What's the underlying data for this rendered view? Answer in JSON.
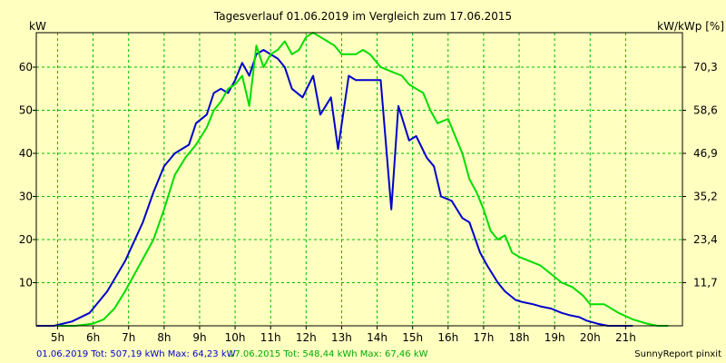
{
  "chart_data": {
    "type": "line",
    "title": "Tagesverlauf 01.06.2019 im Vergleich zum 17.06.2015",
    "ylabel_left": "kW",
    "ylabel_right": "kW/kWp [%]",
    "ylim": [
      0,
      68
    ],
    "xlim": [
      4.4,
      22.6
    ],
    "yticks_left": [
      10,
      20,
      30,
      40,
      50,
      60
    ],
    "yticks_right": [
      "11,7",
      "23,4",
      "35,2",
      "46,9",
      "58,6",
      "70,3"
    ],
    "xticks": [
      "5h",
      "6h",
      "7h",
      "8h",
      "9h",
      "10h",
      "11h",
      "12h",
      "13h",
      "14h",
      "15h",
      "16h",
      "17h",
      "18h",
      "19h",
      "20h",
      "21h"
    ],
    "grid": true,
    "series": [
      {
        "name": "01.06.2019",
        "color": "#0000cc",
        "x": [
          4.4,
          4.9,
          5.4,
          5.9,
          6.4,
          6.9,
          7.4,
          7.7,
          8.0,
          8.3,
          8.7,
          8.9,
          9.2,
          9.4,
          9.6,
          9.8,
          10.0,
          10.2,
          10.4,
          10.6,
          10.8,
          11.0,
          11.2,
          11.4,
          11.6,
          11.9,
          12.2,
          12.4,
          12.7,
          12.9,
          13.2,
          13.4,
          13.6,
          13.8,
          14.1,
          14.4,
          14.6,
          14.9,
          15.1,
          15.4,
          15.6,
          15.8,
          16.1,
          16.4,
          16.6,
          16.9,
          17.1,
          17.4,
          17.6,
          17.9,
          18.1,
          18.4,
          18.6,
          18.9,
          19.2,
          19.4,
          19.7,
          19.9,
          20.2,
          20.5,
          20.8,
          21.2
        ],
        "y": [
          0,
          0,
          1,
          3,
          8,
          15,
          24,
          31,
          37,
          40,
          42,
          47,
          49,
          54,
          55,
          54,
          57,
          61,
          58,
          63,
          64,
          63,
          62,
          60,
          55,
          53,
          58,
          49,
          53,
          41,
          58,
          57,
          57,
          57,
          57,
          27,
          51,
          43,
          44,
          39,
          37,
          30,
          29,
          25,
          24,
          17,
          14,
          10,
          8,
          6,
          5.5,
          5,
          4.5,
          4,
          3,
          2.5,
          2,
          1.2,
          0.5,
          0,
          0,
          0
        ]
      },
      {
        "name": "17.06.2015",
        "color": "#00dd00",
        "x": [
          5.0,
          5.5,
          6.0,
          6.3,
          6.6,
          6.9,
          7.3,
          7.7,
          8.0,
          8.3,
          8.6,
          8.9,
          9.2,
          9.4,
          9.6,
          9.8,
          10.0,
          10.2,
          10.4,
          10.6,
          10.8,
          11.0,
          11.2,
          11.4,
          11.6,
          11.8,
          12.0,
          12.2,
          12.4,
          12.6,
          12.8,
          13.0,
          13.2,
          13.4,
          13.6,
          13.8,
          14.1,
          14.4,
          14.7,
          14.9,
          15.1,
          15.3,
          15.5,
          15.7,
          16.0,
          16.2,
          16.4,
          16.6,
          16.8,
          17.0,
          17.2,
          17.4,
          17.6,
          17.8,
          18.0,
          18.3,
          18.6,
          18.9,
          19.2,
          19.5,
          19.8,
          20.0,
          20.4,
          20.8,
          21.2,
          21.6,
          21.9,
          22.2
        ],
        "y": [
          0,
          0,
          0.5,
          1.5,
          4,
          8,
          14,
          20,
          27,
          35,
          39,
          42,
          46,
          50,
          52,
          55,
          56,
          58,
          51,
          65,
          60,
          63,
          64,
          66,
          63,
          64,
          67,
          68,
          67,
          66,
          65,
          63,
          63,
          63,
          64,
          63,
          60,
          59,
          58,
          56,
          55,
          54,
          50,
          47,
          48,
          44,
          40,
          34,
          31,
          27,
          22,
          20,
          21,
          17,
          16,
          15,
          14,
          12,
          10,
          9,
          7,
          5,
          5,
          3,
          1.5,
          0.5,
          0,
          0
        ]
      }
    ],
    "footer_left": "01.06.2019 Tot: 507,19 kWh Max: 64,23 kW",
    "footer_mid": "17.06.2015 Tot: 548,44 kWh Max: 67,46 kW",
    "footer_right": "SunnyReport pinxit"
  }
}
